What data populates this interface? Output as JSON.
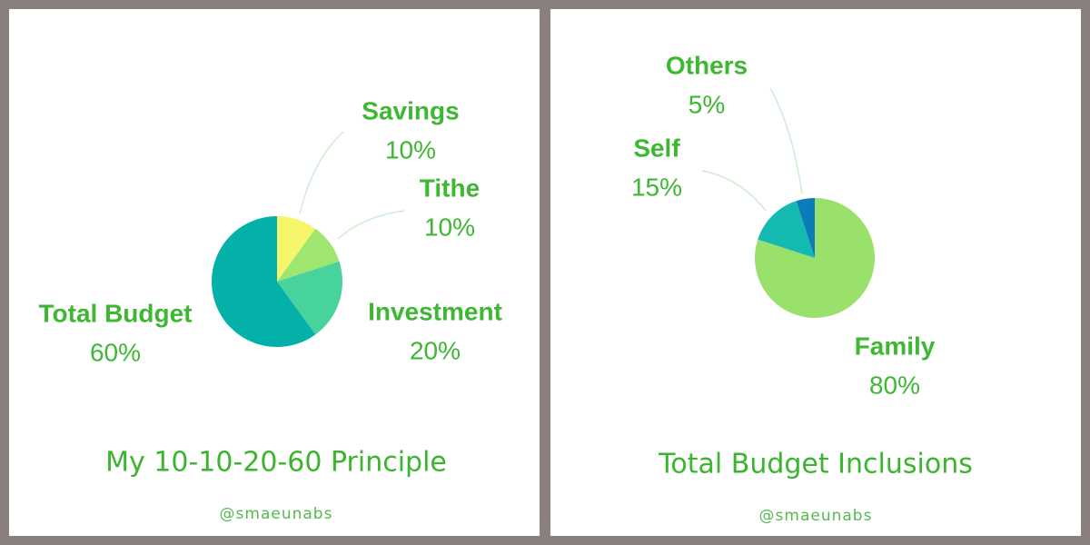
{
  "chart_data": [
    {
      "type": "pie",
      "title": "My 10-10-20-60 Principle",
      "credit": "@smaeunabs",
      "categories": [
        "Savings",
        "Tithe",
        "Investment",
        "Total Budget"
      ],
      "values": [
        10,
        10,
        20,
        60
      ],
      "value_labels": [
        "10%",
        "10%",
        "20%",
        "60%"
      ],
      "colors": [
        "#f6f66c",
        "#9ee66f",
        "#47d39b",
        "#03b1a9"
      ]
    },
    {
      "type": "pie",
      "title": "Total Budget Inclusions",
      "credit": "@smaeunabs",
      "categories": [
        "Family",
        "Self",
        "Others"
      ],
      "values": [
        80,
        15,
        5
      ],
      "value_labels": [
        "80%",
        "15%",
        "5%"
      ],
      "colors": [
        "#99e16b",
        "#14b9b1",
        "#0c7bb9"
      ]
    }
  ]
}
